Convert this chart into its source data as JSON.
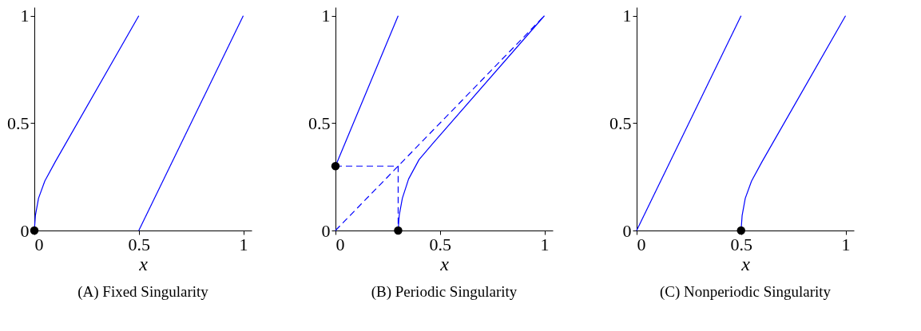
{
  "chart_data": [
    {
      "type": "line",
      "title": "(A) Fixed Singularity",
      "xlabel": "x",
      "xlim": [
        0,
        1.04
      ],
      "ylim": [
        0,
        1.04
      ],
      "xticks": [
        0,
        0.5,
        1
      ],
      "yticks": [
        0,
        0.5,
        1
      ],
      "grid": false,
      "series": [
        {
          "color": "#0000ff",
          "x": [
            0,
            0.005,
            0.02,
            0.05,
            0.1,
            0.5
          ],
          "values": [
            0,
            0.07,
            0.15,
            0.23,
            0.32,
            1
          ]
        },
        {
          "color": "#0000ff",
          "x": [
            0.5,
            1
          ],
          "values": [
            0,
            1
          ]
        },
        {
          "type": "scatter",
          "marker": "circle",
          "color": "#000000",
          "x": [
            0
          ],
          "values": [
            0
          ]
        }
      ]
    },
    {
      "type": "line",
      "title": "(B) Periodic Singularity",
      "xlabel": "x",
      "xlim": [
        0,
        1.04
      ],
      "ylim": [
        0,
        1.04
      ],
      "xticks": [
        0,
        0.5,
        1
      ],
      "yticks": [
        0,
        0.5,
        1
      ],
      "grid": false,
      "series": [
        {
          "color": "#0000ff",
          "x": [
            0,
            0.3
          ],
          "values": [
            0.3,
            1
          ]
        },
        {
          "color": "#0000ff",
          "line_style": "dashed",
          "x": [
            0,
            1
          ],
          "values": [
            0,
            1
          ]
        },
        {
          "color": "#0000ff",
          "line_style": "dashed",
          "x": [
            0,
            0.3,
            0.3
          ],
          "values": [
            0.3,
            0.3,
            0
          ]
        },
        {
          "color": "#0000ff",
          "x": [
            0.3,
            0.305,
            0.32,
            0.35,
            0.4,
            0.47,
            1
          ],
          "values": [
            0,
            0.07,
            0.15,
            0.24,
            0.33,
            0.41,
            1
          ]
        },
        {
          "type": "scatter",
          "marker": "circle",
          "color": "#000000",
          "x": [
            0,
            0.3
          ],
          "values": [
            0.3,
            0
          ]
        }
      ]
    },
    {
      "type": "line",
      "title": "(C) Nonperiodic Singularity",
      "xlabel": "x",
      "xlim": [
        0,
        1.04
      ],
      "ylim": [
        0,
        1.04
      ],
      "xticks": [
        0,
        0.5,
        1
      ],
      "yticks": [
        0,
        0.5,
        1
      ],
      "grid": false,
      "series": [
        {
          "color": "#0000ff",
          "x": [
            0,
            0.5
          ],
          "values": [
            0,
            1
          ]
        },
        {
          "color": "#0000ff",
          "x": [
            0.5,
            0.505,
            0.52,
            0.55,
            0.6,
            1
          ],
          "values": [
            0,
            0.07,
            0.15,
            0.23,
            0.32,
            1
          ]
        },
        {
          "type": "scatter",
          "marker": "circle",
          "color": "#000000",
          "x": [
            0.5
          ],
          "values": [
            0
          ]
        }
      ]
    }
  ]
}
